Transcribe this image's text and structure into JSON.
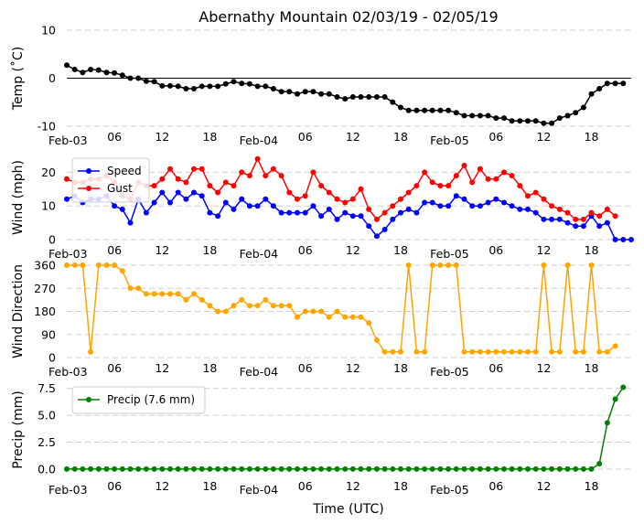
{
  "chart_data": {
    "type": "line",
    "title": "Abernathy Mountain 02/03/19 - 02/05/19",
    "xlabel": "Time (UTC)",
    "x_range_hours": [
      0,
      71
    ],
    "x_ticks": [
      {
        "hour": 0,
        "label": "Feb-03"
      },
      {
        "hour": 6,
        "label": "06"
      },
      {
        "hour": 12,
        "label": "12"
      },
      {
        "hour": 18,
        "label": "18"
      },
      {
        "hour": 24,
        "label": "Feb-04"
      },
      {
        "hour": 30,
        "label": "06"
      },
      {
        "hour": 36,
        "label": "12"
      },
      {
        "hour": 42,
        "label": "18"
      },
      {
        "hour": 48,
        "label": "Feb-05"
      },
      {
        "hour": 54,
        "label": "06"
      },
      {
        "hour": 60,
        "label": "12"
      },
      {
        "hour": 66,
        "label": "18"
      }
    ],
    "panels": [
      {
        "id": "temp",
        "ylabel": "Temp (˚C)",
        "ylim": [
          -10,
          10
        ],
        "yticks": [
          {
            "v": -10,
            "label": "-10"
          },
          {
            "v": 0,
            "label": "0"
          },
          {
            "v": 10,
            "label": "10"
          }
        ],
        "zero_line": true,
        "legend": null,
        "series": [
          {
            "name": "Temp",
            "color": "#000000",
            "values": [
              2.7,
              1.8,
              1.2,
              1.8,
              1.7,
              1.2,
              1.1,
              0.6,
              0,
              0,
              -0.6,
              -0.7,
              -1.6,
              -1.6,
              -1.7,
              -2.2,
              -2.2,
              -1.7,
              -1.7,
              -1.7,
              -1.2,
              -0.7,
              -1.1,
              -1.2,
              -1.7,
              -1.7,
              -2.2,
              -2.8,
              -2.8,
              -3.3,
              -2.8,
              -2.8,
              -3.3,
              -3.3,
              -3.9,
              -4.3,
              -3.9,
              -3.9,
              -3.9,
              -3.9,
              -3.9,
              -5,
              -6.1,
              -6.7,
              -6.7,
              -6.7,
              -6.7,
              -6.7,
              -6.7,
              -7.2,
              -7.8,
              -7.8,
              -7.8,
              -7.8,
              -8.3,
              -8.3,
              -8.9,
              -8.9,
              -8.9,
              -8.9,
              -9.4,
              -9.4,
              -8.3,
              -7.8,
              -7.2,
              -6.1,
              -3.3,
              -2.2,
              -1.1,
              -1.1,
              -1.1
            ]
          }
        ]
      },
      {
        "id": "wind",
        "ylabel": "Wind (mph)",
        "ylim": [
          0,
          25
        ],
        "yticks": [
          {
            "v": 0,
            "label": "0"
          },
          {
            "v": 10,
            "label": "10"
          },
          {
            "v": 20,
            "label": "20"
          }
        ],
        "zero_line": false,
        "legend": "top-left",
        "series": [
          {
            "name": "Speed",
            "color": "#0000ff",
            "values": [
              12,
              13,
              11,
              12,
              12,
              13,
              10,
              9,
              5,
              12,
              8,
              11,
              14,
              11,
              14,
              12,
              14,
              13,
              8,
              7,
              11,
              9,
              12,
              10,
              10,
              12,
              10,
              8,
              8,
              8,
              8,
              10,
              7,
              9,
              6,
              8,
              7,
              7,
              4,
              1,
              3,
              6,
              8,
              9,
              8,
              11,
              11,
              10,
              10,
              13,
              12,
              10,
              10,
              11,
              12,
              11,
              10,
              9,
              9,
              8,
              6,
              6,
              6,
              5,
              4,
              4,
              7,
              4,
              5,
              0,
              0,
              0
            ]
          },
          {
            "name": "Gust",
            "color": "#ff0000",
            "values": [
              18,
              17,
              17,
              18,
              18,
              19,
              17,
              13,
              12,
              17,
              16,
              16,
              18,
              21,
              18,
              17,
              21,
              21,
              16,
              14,
              17,
              16,
              20,
              19,
              24,
              19,
              21,
              19,
              14,
              12,
              13,
              20,
              16,
              14,
              12,
              11,
              12,
              15,
              9,
              6,
              8,
              10,
              12,
              14,
              16,
              20,
              17,
              16,
              16,
              19,
              22,
              17,
              21,
              18,
              18,
              20,
              19,
              16,
              13,
              14,
              12,
              10,
              9,
              8,
              6,
              6,
              8,
              7,
              9,
              7
            ]
          }
        ]
      },
      {
        "id": "dir",
        "ylabel": "Wind Direction",
        "ylim": [
          0,
          360
        ],
        "yticks": [
          {
            "v": 0,
            "label": "0"
          },
          {
            "v": 90,
            "label": "90"
          },
          {
            "v": 180,
            "label": "180"
          },
          {
            "v": 270,
            "label": "270"
          },
          {
            "v": 360,
            "label": "360"
          }
        ],
        "zero_line": false,
        "legend": null,
        "series": [
          {
            "name": "Direction",
            "color": "#ffa500",
            "values": [
              360,
              360,
              360,
              22,
              360,
              360,
              360,
              338,
              270,
              270,
              248,
              248,
              248,
              248,
              248,
              225,
              248,
              225,
              202,
              180,
              180,
              202,
              225,
              202,
              202,
              225,
              202,
              202,
              202,
              158,
              180,
              180,
              180,
              158,
              180,
              158,
              158,
              158,
              135,
              68,
              22,
              22,
              22,
              360,
              22,
              22,
              360,
              360,
              360,
              360,
              22,
              22,
              22,
              22,
              22,
              22,
              22,
              22,
              22,
              22,
              360,
              22,
              22,
              360,
              22,
              22,
              360,
              22,
              22,
              45
            ]
          }
        ]
      },
      {
        "id": "precip",
        "ylabel": "Precip (mm)",
        "ylim": [
          -0.6,
          7.9
        ],
        "yticks": [
          {
            "v": 0,
            "label": "0.0"
          },
          {
            "v": 2.5,
            "label": "2.5"
          },
          {
            "v": 5,
            "label": "5.0"
          },
          {
            "v": 7.5,
            "label": "7.5"
          }
        ],
        "zero_line": false,
        "legend": "top-left",
        "series": [
          {
            "name": "Precip (7.6 mm)",
            "color": "#008000",
            "values": [
              0,
              0,
              0,
              0,
              0,
              0,
              0,
              0,
              0,
              0,
              0,
              0,
              0,
              0,
              0,
              0,
              0,
              0,
              0,
              0,
              0,
              0,
              0,
              0,
              0,
              0,
              0,
              0,
              0,
              0,
              0,
              0,
              0,
              0,
              0,
              0,
              0,
              0,
              0,
              0,
              0,
              0,
              0,
              0,
              0,
              0,
              0,
              0,
              0,
              0,
              0,
              0,
              0,
              0,
              0,
              0,
              0,
              0,
              0,
              0,
              0,
              0,
              0,
              0,
              0,
              0,
              0,
              0.5,
              4.3,
              6.5,
              7.6
            ]
          }
        ]
      }
    ]
  }
}
